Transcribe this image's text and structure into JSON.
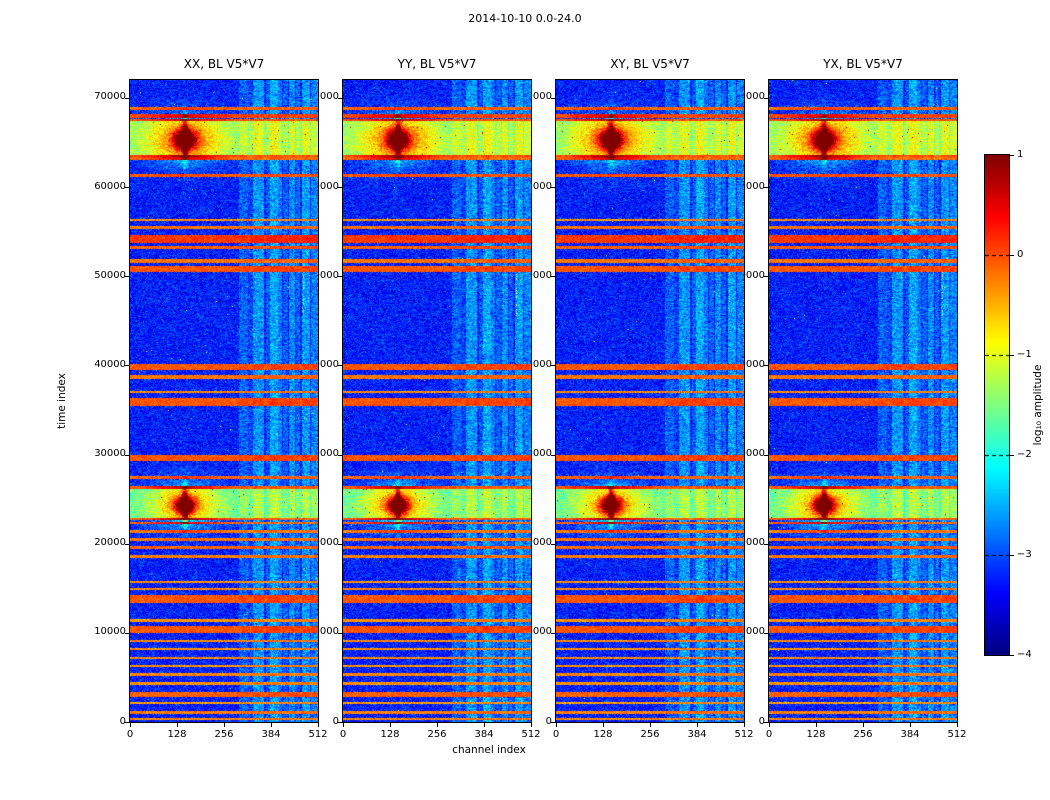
{
  "figure": {
    "suptitle": "2014-10-10 0.0-24.0"
  },
  "chart_data": {
    "type": "heatmap",
    "title": "2014-10-10 0.0-24.0",
    "layout": "4 waterfall panels side-by-side with shared colorbar on right",
    "colormap": "jet",
    "panels": [
      {
        "key": "xx",
        "title": "XX, BL V5*V7"
      },
      {
        "key": "yy",
        "title": "YY, BL V5*V7"
      },
      {
        "key": "xy",
        "title": "XY, BL V5*V7"
      },
      {
        "key": "yx",
        "title": "YX, BL V5*V7"
      }
    ],
    "x": {
      "label": "channel index",
      "min": 0,
      "max": 512,
      "ticks": [
        0,
        128,
        256,
        384,
        512
      ]
    },
    "y": {
      "label": "time index",
      "min": 0,
      "max": 72000,
      "ticks": [
        0,
        10000,
        20000,
        30000,
        40000,
        50000,
        60000,
        70000
      ]
    },
    "colorbar": {
      "label": "log₁₀ amplitude",
      "min": -4,
      "max": 1,
      "ticks": [
        1,
        0,
        -1,
        -2,
        -3,
        -4
      ],
      "tick_labels": [
        "1",
        "0",
        "−1",
        "−2",
        "−3",
        "−4"
      ]
    },
    "features": {
      "background_level": -3.25,
      "noise_sigma": 0.25,
      "vertical_bands": [
        {
          "ch": [
            296,
            320
          ],
          "boost": 0.5
        },
        {
          "ch": [
            322,
            334
          ],
          "boost": 0.25
        },
        {
          "ch": [
            336,
            366
          ],
          "boost": 0.9
        },
        {
          "ch": [
            370,
            380
          ],
          "boost": 0.45
        },
        {
          "ch": [
            382,
            402
          ],
          "boost": 1.05
        },
        {
          "ch": [
            404,
            414
          ],
          "boost": 0.7
        },
        {
          "ch": [
            418,
            430
          ],
          "boost": 0.5
        },
        {
          "ch": [
            432,
            448
          ],
          "boost": 0.85
        },
        {
          "ch": [
            452,
            464
          ],
          "boost": 0.55
        },
        {
          "ch": [
            468,
            490
          ],
          "boost": 0.95
        },
        {
          "ch": [
            492,
            512
          ],
          "boost": 0.75
        }
      ],
      "rfi_lines": [
        [
          350,
          120,
          -0.3
        ],
        [
          1050,
          150,
          -0.25
        ],
        [
          2150,
          120,
          -0.4
        ],
        [
          3050,
          260,
          -0.1
        ],
        [
          4300,
          140,
          -0.35
        ],
        [
          5300,
          140,
          -0.3
        ],
        [
          6300,
          140,
          -0.35
        ],
        [
          7200,
          140,
          -0.3
        ],
        [
          8200,
          140,
          -0.35
        ],
        [
          9100,
          140,
          -0.3
        ],
        [
          10400,
          420,
          -0.05
        ],
        [
          11400,
          140,
          -0.35
        ],
        [
          13800,
          460,
          -0.05
        ],
        [
          14900,
          150,
          -0.3
        ],
        [
          15700,
          140,
          -0.35
        ],
        [
          18600,
          180,
          -0.25
        ],
        [
          19600,
          180,
          -0.15
        ],
        [
          20500,
          170,
          -0.25
        ],
        [
          21400,
          150,
          -0.3
        ],
        [
          22300,
          150,
          -0.25
        ],
        [
          22800,
          120,
          -0.2
        ],
        [
          26300,
          120,
          -0.15
        ],
        [
          27400,
          190,
          -0.2
        ],
        [
          29600,
          340,
          -0.05
        ],
        [
          35900,
          440,
          -0.05
        ],
        [
          37000,
          150,
          -0.3
        ],
        [
          38700,
          190,
          -0.2
        ],
        [
          39800,
          340,
          -0.05
        ],
        [
          50800,
          340,
          -0.05
        ],
        [
          51700,
          190,
          -0.2
        ],
        [
          53200,
          200,
          -0.1
        ],
        [
          54200,
          430,
          0.1
        ],
        [
          55500,
          180,
          -0.2
        ],
        [
          56300,
          140,
          -0.35
        ],
        [
          61300,
          200,
          -0.1
        ],
        [
          63200,
          150,
          -0.25
        ],
        [
          63500,
          130,
          -0.1
        ],
        [
          67500,
          130,
          -0.1
        ],
        [
          68000,
          240,
          -0.05
        ],
        [
          68800,
          150,
          -0.2
        ]
      ],
      "bright_bands": [
        {
          "t": [
            22700,
            26300
          ],
          "level": -1.75
        },
        {
          "t": [
            63400,
            67500
          ],
          "level": -1.5
        }
      ],
      "blobs": [
        {
          "t": 24300,
          "ch": 150,
          "core": {
            "amp": 2.6,
            "sigma_t": 700,
            "sigma_ch": 20
          },
          "halo": {
            "amp": 1.3,
            "sigma_t": 1800,
            "sigma_ch": 70
          },
          "spike": {
            "amp": 2.0,
            "sigma_t": 1500,
            "sigma_ch": 5
          }
        },
        {
          "t": 65300,
          "ch": 150,
          "core": {
            "amp": 2.7,
            "sigma_t": 750,
            "sigma_ch": 20
          },
          "halo": {
            "amp": 1.4,
            "sigma_t": 1900,
            "sigma_ch": 70
          },
          "spike": {
            "amp": 2.1,
            "sigma_t": 1600,
            "sigma_ch": 5
          }
        }
      ],
      "dotted_column": {
        "ch": 472,
        "t": [
          45500,
          50500
        ],
        "level": -1.5
      }
    }
  }
}
